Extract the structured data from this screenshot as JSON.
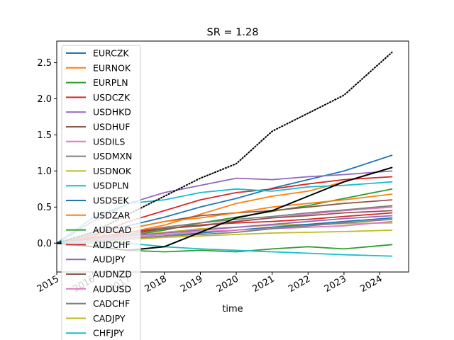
{
  "chart_data": {
    "type": "line",
    "title": "SR = 1.28",
    "xlabel": "time",
    "ylabel": "",
    "xlim": [
      2015.0,
      2024.8
    ],
    "ylim": [
      -0.4,
      2.8
    ],
    "x_ticks": [
      2015,
      2016,
      2017,
      2018,
      2019,
      2020,
      2021,
      2022,
      2023,
      2024
    ],
    "x_tick_labels": [
      "2015",
      "2016",
      "2017",
      "2018",
      "2019",
      "2020",
      "2021",
      "2022",
      "2023",
      "2024"
    ],
    "y_ticks": [
      0.0,
      0.5,
      1.0,
      1.5,
      2.0,
      2.5
    ],
    "y_tick_labels": [
      "0.0",
      "0.5",
      "1.0",
      "1.5",
      "2.0",
      "2.5"
    ],
    "grid": false,
    "legend_position": "upper-left",
    "x": [
      2015.0,
      2016.0,
      2017.0,
      2018.0,
      2019.0,
      2020.0,
      2021.0,
      2022.0,
      2023.0,
      2024.35
    ],
    "series": [
      {
        "name": "EURCZK",
        "color": "#1f77b4",
        "values": [
          0.0,
          0.12,
          0.24,
          0.36,
          0.5,
          0.62,
          0.76,
          0.88,
          1.0,
          1.22
        ]
      },
      {
        "name": "EURNOK",
        "color": "#ff7f0e",
        "values": [
          0.0,
          0.05,
          0.15,
          0.25,
          0.4,
          0.55,
          0.65,
          0.72,
          0.85,
          1.05
        ]
      },
      {
        "name": "EURPLN",
        "color": "#2ca02c",
        "values": [
          0.0,
          0.03,
          0.1,
          0.18,
          0.28,
          0.36,
          0.44,
          0.52,
          0.62,
          0.75
        ]
      },
      {
        "name": "USDCZK",
        "color": "#d62728",
        "values": [
          0.0,
          0.1,
          0.3,
          0.45,
          0.6,
          0.7,
          0.75,
          0.82,
          0.88,
          0.92
        ]
      },
      {
        "name": "USDHKD",
        "color": "#9467bd",
        "values": [
          0.0,
          0.3,
          0.55,
          0.7,
          0.8,
          0.9,
          0.88,
          0.92,
          0.95,
          1.0
        ]
      },
      {
        "name": "USDHUF",
        "color": "#8c564b",
        "values": [
          0.0,
          0.1,
          0.2,
          0.3,
          0.38,
          0.42,
          0.45,
          0.5,
          0.55,
          0.6
        ]
      },
      {
        "name": "USDILS",
        "color": "#e377c2",
        "values": [
          0.0,
          0.05,
          0.12,
          0.2,
          0.25,
          0.3,
          0.35,
          0.4,
          0.45,
          0.5
        ]
      },
      {
        "name": "USDMXN",
        "color": "#7f7f7f",
        "values": [
          0.0,
          0.08,
          0.15,
          0.22,
          0.28,
          0.33,
          0.37,
          0.42,
          0.46,
          0.52
        ]
      },
      {
        "name": "USDNOK",
        "color": "#bcbd22",
        "values": [
          0.0,
          0.05,
          0.1,
          0.15,
          0.2,
          0.22,
          0.25,
          0.26,
          0.27,
          0.28
        ]
      },
      {
        "name": "USDPLN",
        "color": "#17becf",
        "values": [
          0.0,
          0.35,
          0.55,
          0.6,
          0.7,
          0.75,
          0.72,
          0.78,
          0.8,
          0.85
        ]
      },
      {
        "name": "USDSEK",
        "color": "#1f77b4",
        "values": [
          0.0,
          0.02,
          0.06,
          0.1,
          0.14,
          0.18,
          0.22,
          0.26,
          0.3,
          0.35
        ]
      },
      {
        "name": "USDZAR",
        "color": "#ff7f0e",
        "values": [
          0.0,
          0.1,
          0.2,
          0.3,
          0.35,
          0.42,
          0.5,
          0.55,
          0.6,
          0.68
        ]
      },
      {
        "name": "AUDCAD",
        "color": "#2ca02c",
        "values": [
          0.0,
          -0.05,
          -0.1,
          -0.12,
          -0.1,
          -0.12,
          -0.08,
          -0.05,
          -0.08,
          -0.02
        ]
      },
      {
        "name": "AUDCHF",
        "color": "#d62728",
        "values": [
          0.0,
          0.08,
          0.15,
          0.2,
          0.25,
          0.28,
          0.3,
          0.33,
          0.37,
          0.42
        ]
      },
      {
        "name": "AUDJPY",
        "color": "#9467bd",
        "values": [
          0.0,
          0.04,
          0.1,
          0.14,
          0.18,
          0.22,
          0.26,
          0.3,
          0.34,
          0.38
        ]
      },
      {
        "name": "AUDNZD",
        "color": "#8c564b",
        "values": [
          0.0,
          0.06,
          0.12,
          0.2,
          0.24,
          0.3,
          0.35,
          0.38,
          0.42,
          0.45
        ]
      },
      {
        "name": "AUDUSD",
        "color": "#e377c2",
        "values": [
          0.0,
          0.04,
          0.08,
          0.12,
          0.16,
          0.18,
          0.2,
          0.22,
          0.24,
          0.3
        ]
      },
      {
        "name": "CADCHF",
        "color": "#7f7f7f",
        "values": [
          0.0,
          0.03,
          0.06,
          0.1,
          0.12,
          0.15,
          0.2,
          0.24,
          0.28,
          0.33
        ]
      },
      {
        "name": "CADJPY",
        "color": "#bcbd22",
        "values": [
          0.0,
          0.0,
          0.05,
          0.08,
          0.1,
          0.12,
          0.14,
          0.15,
          0.16,
          0.18
        ]
      },
      {
        "name": "CHFJPY",
        "color": "#17becf",
        "values": [
          0.0,
          0.02,
          0.0,
          -0.05,
          -0.08,
          -0.1,
          -0.12,
          -0.14,
          -0.16,
          -0.18
        ]
      },
      {
        "name": "",
        "color": "#000000",
        "values": [
          0.0,
          0.15,
          0.4,
          0.65,
          0.9,
          1.1,
          1.55,
          1.8,
          2.05,
          2.65
        ]
      },
      {
        "name": "",
        "color": "#000000",
        "values": [
          0.0,
          -0.05,
          -0.1,
          -0.05,
          0.15,
          0.35,
          0.45,
          0.65,
          0.85,
          1.05
        ]
      }
    ]
  }
}
